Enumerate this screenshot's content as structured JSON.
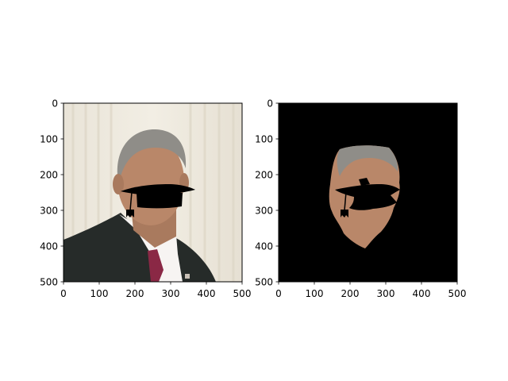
{
  "chart_data": [
    {
      "type": "image",
      "description_free": true,
      "xlim": [
        0,
        500
      ],
      "ylim": [
        500,
        0
      ],
      "xticks": [
        "0",
        "100",
        "200",
        "300",
        "400",
        "500"
      ],
      "yticks": [
        "0",
        "100",
        "200",
        "300",
        "400",
        "500"
      ]
    },
    {
      "type": "image",
      "xlim": [
        0,
        500
      ],
      "ylim": [
        500,
        0
      ],
      "xticks": [
        "0",
        "100",
        "200",
        "300",
        "400",
        "500"
      ],
      "yticks": [
        "0",
        "100",
        "200",
        "300",
        "400",
        "500"
      ]
    }
  ],
  "colors": {
    "axis": "#000000",
    "masked_background": "#000000",
    "photo_backdrop": "#eee9dd",
    "suit": "#262b29",
    "tie": "#8a2845",
    "skin": "#b98769",
    "hair": "#8f8d88"
  }
}
